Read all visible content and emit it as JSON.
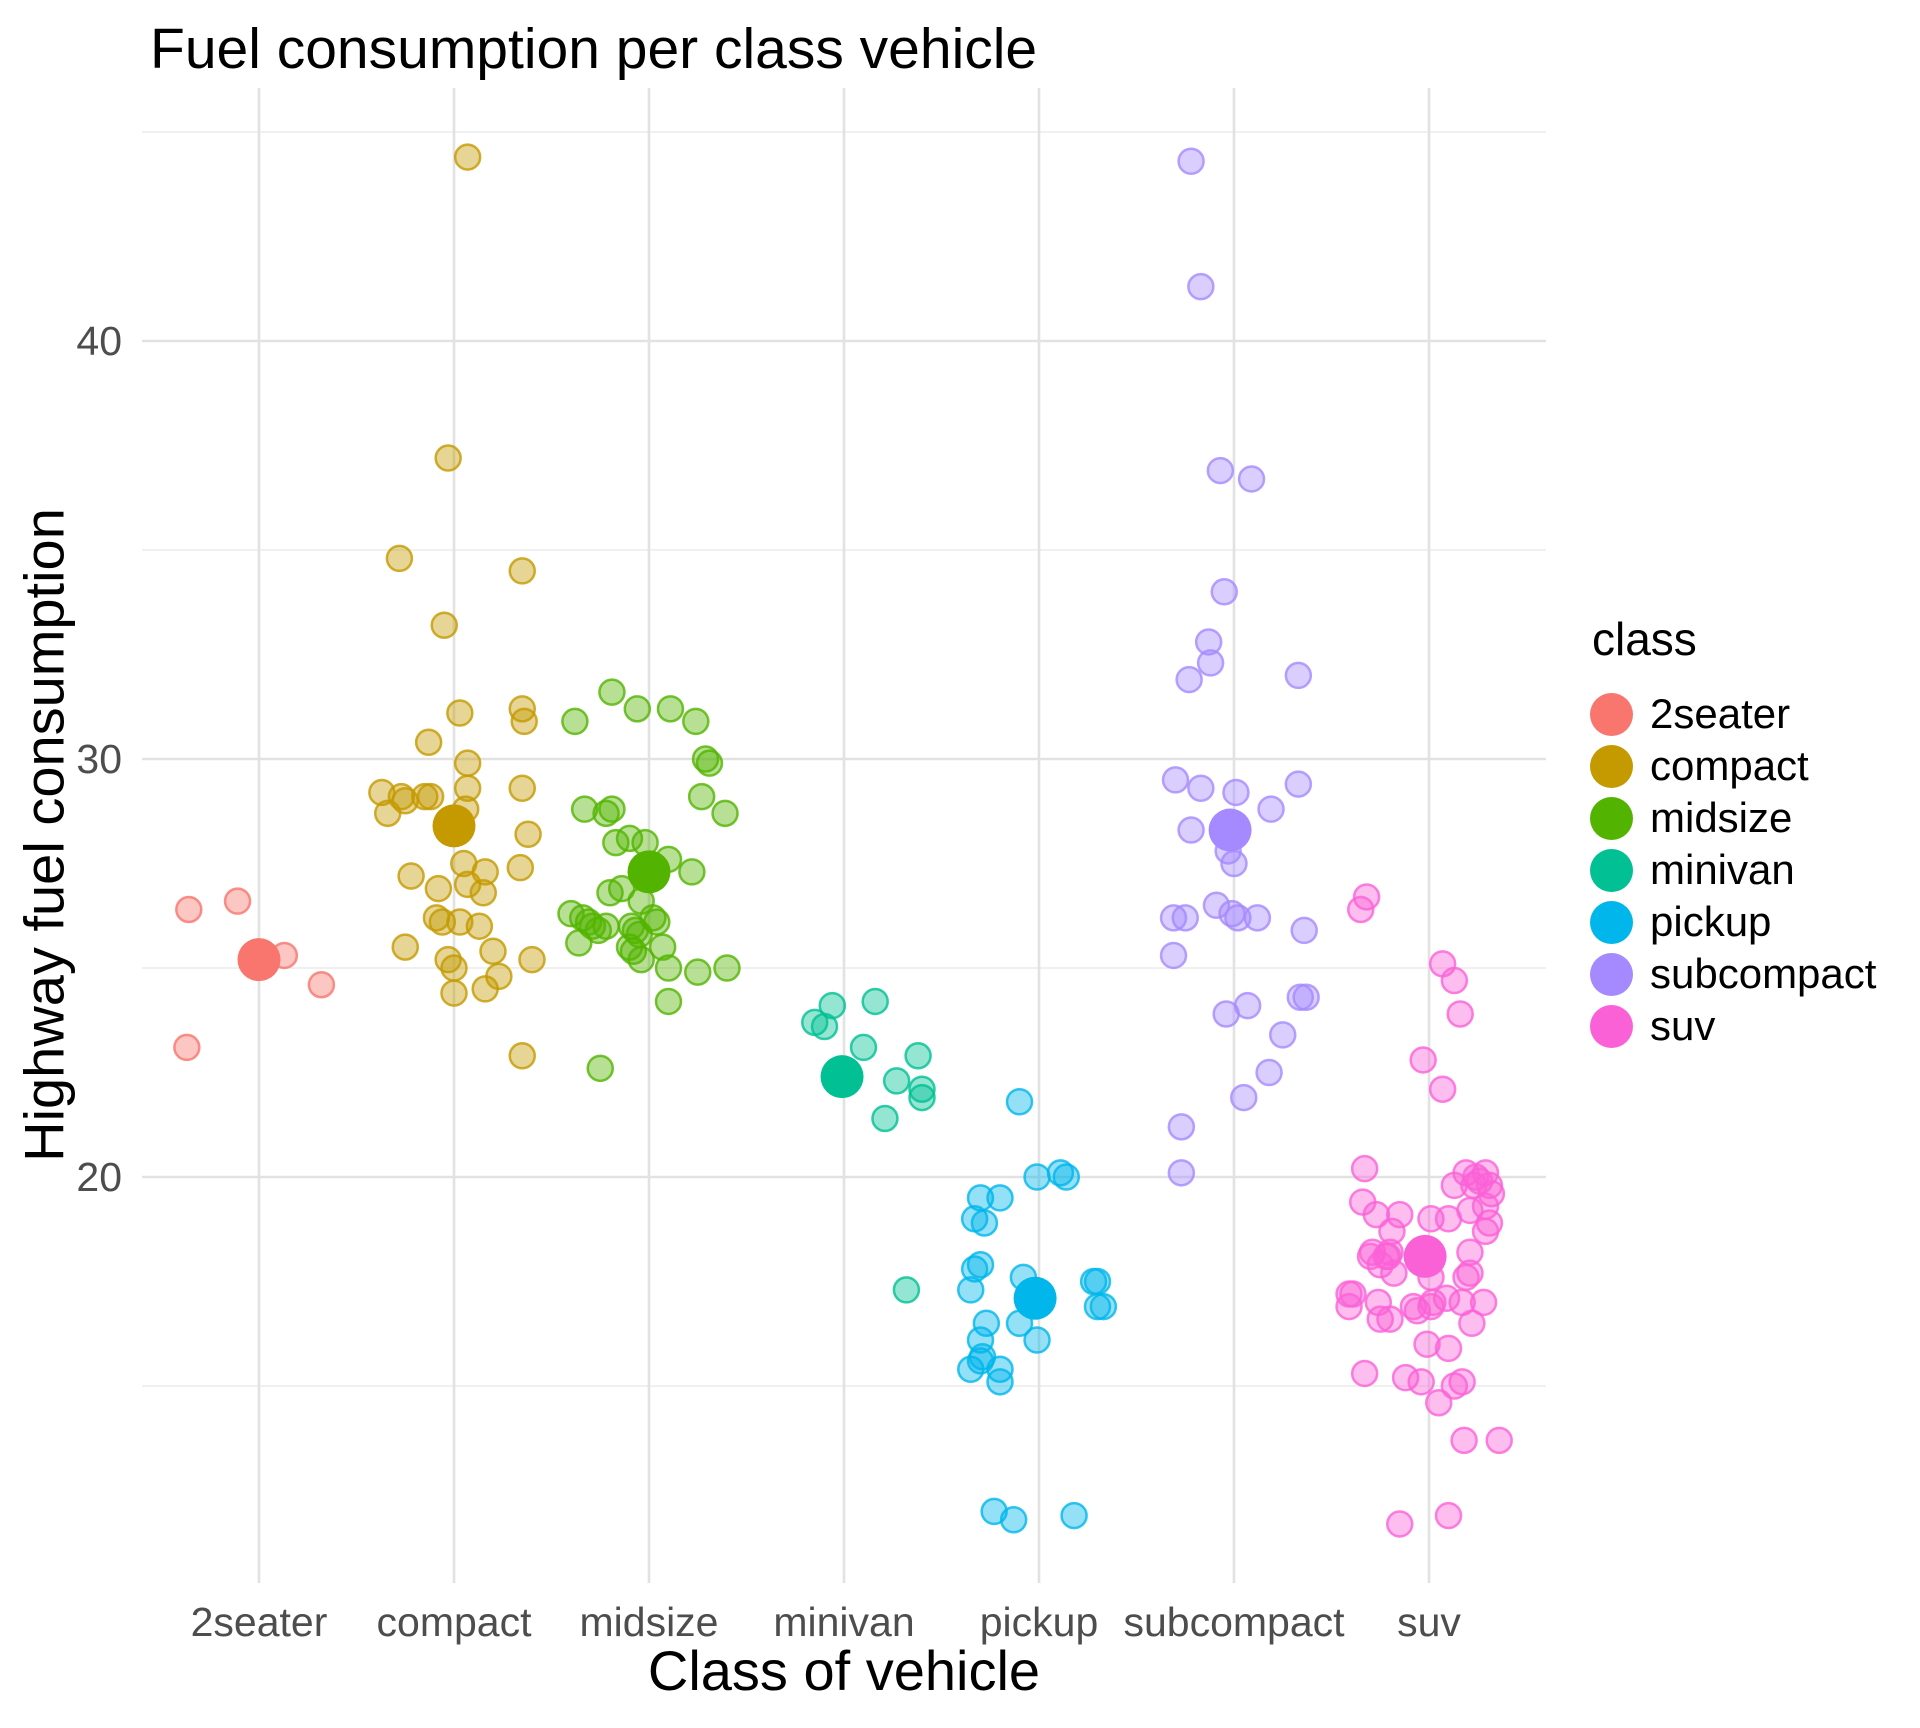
{
  "chart_data": {
    "type": "scatter",
    "title": "Fuel consumption per class vehicle",
    "xlabel": "Class of vehicle",
    "ylabel": "Highway fuel consumption",
    "categories": [
      "2seater",
      "compact",
      "midsize",
      "minivan",
      "pickup",
      "subcompact",
      "suv"
    ],
    "y_axis": {
      "major_ticks": [
        20,
        30,
        40
      ],
      "minor_ticks": [
        15,
        25,
        35,
        45
      ],
      "range": [
        10.3,
        46.1
      ]
    },
    "grid": true,
    "legend_position": "right",
    "point_alpha": 0.45,
    "colors": {
      "axis_text": "#4D4D4D",
      "text": "#000000",
      "grid_major": "#E2E2E2",
      "grid_minor": "#F0F0F0",
      "background": "#FFFFFF"
    },
    "series": [
      {
        "name": "2seater",
        "color": "#F8766D",
        "mean": 25.2,
        "mean_dx": 0.0,
        "points": [
          [
            -0.36,
            26.4
          ],
          [
            -0.11,
            26.6
          ],
          [
            0.13,
            25.3
          ],
          [
            0.32,
            24.6
          ],
          [
            -0.37,
            23.1
          ]
        ]
      },
      {
        "name": "compact",
        "color": "#C49A00",
        "mean": 28.4,
        "mean_dx": 0.0,
        "points": [
          [
            0.07,
            44.4
          ],
          [
            -0.03,
            37.2
          ],
          [
            -0.28,
            34.8
          ],
          [
            0.35,
            34.5
          ],
          [
            -0.05,
            33.2
          ],
          [
            0.03,
            31.1
          ],
          [
            0.35,
            31.2
          ],
          [
            0.36,
            30.9
          ],
          [
            -0.13,
            30.4
          ],
          [
            0.07,
            29.9
          ],
          [
            0.07,
            29.3
          ],
          [
            0.35,
            29.3
          ],
          [
            -0.37,
            29.2
          ],
          [
            -0.34,
            28.7
          ],
          [
            -0.27,
            29.1
          ],
          [
            -0.25,
            29.0
          ],
          [
            -0.15,
            29.1
          ],
          [
            -0.12,
            29.1
          ],
          [
            0.06,
            28.8
          ],
          [
            0.38,
            28.2
          ],
          [
            0.05,
            27.5
          ],
          [
            0.16,
            27.3
          ],
          [
            0.34,
            27.4
          ],
          [
            -0.22,
            27.2
          ],
          [
            -0.08,
            26.9
          ],
          [
            0.07,
            27.0
          ],
          [
            0.15,
            26.8
          ],
          [
            -0.09,
            26.2
          ],
          [
            -0.06,
            26.1
          ],
          [
            0.03,
            26.1
          ],
          [
            0.13,
            26.0
          ],
          [
            -0.25,
            25.5
          ],
          [
            -0.03,
            25.2
          ],
          [
            0.0,
            25.0
          ],
          [
            0.2,
            25.4
          ],
          [
            0.23,
            24.8
          ],
          [
            0.16,
            24.5
          ],
          [
            0.4,
            25.2
          ],
          [
            0.0,
            24.4
          ],
          [
            0.35,
            22.9
          ]
        ]
      },
      {
        "name": "midsize",
        "color": "#53B400",
        "mean": 27.3,
        "mean_dx": 0.0,
        "points": [
          [
            -0.19,
            31.6
          ],
          [
            -0.06,
            31.2
          ],
          [
            0.11,
            31.2
          ],
          [
            0.24,
            30.9
          ],
          [
            -0.38,
            30.9
          ],
          [
            0.29,
            30.0
          ],
          [
            0.31,
            29.9
          ],
          [
            0.27,
            29.1
          ],
          [
            0.39,
            28.7
          ],
          [
            -0.33,
            28.8
          ],
          [
            -0.22,
            28.7
          ],
          [
            -0.19,
            28.8
          ],
          [
            -0.17,
            28.0
          ],
          [
            -0.1,
            28.1
          ],
          [
            -0.02,
            28.0
          ],
          [
            0.1,
            27.6
          ],
          [
            0.22,
            27.3
          ],
          [
            -0.2,
            26.8
          ],
          [
            -0.14,
            26.9
          ],
          [
            -0.04,
            26.6
          ],
          [
            -0.4,
            26.3
          ],
          [
            -0.34,
            26.2
          ],
          [
            -0.31,
            26.1
          ],
          [
            -0.29,
            26.0
          ],
          [
            -0.22,
            26.0
          ],
          [
            -0.36,
            25.6
          ],
          [
            -0.26,
            25.9
          ],
          [
            -0.09,
            26.0
          ],
          [
            -0.07,
            25.9
          ],
          [
            -0.05,
            25.8
          ],
          [
            0.02,
            26.2
          ],
          [
            0.04,
            26.1
          ],
          [
            -0.1,
            25.5
          ],
          [
            -0.08,
            25.4
          ],
          [
            -0.04,
            25.2
          ],
          [
            0.07,
            25.5
          ],
          [
            0.1,
            25.0
          ],
          [
            0.25,
            24.9
          ],
          [
            0.4,
            25.0
          ],
          [
            0.1,
            24.2
          ],
          [
            -0.25,
            22.6
          ]
        ]
      },
      {
        "name": "minivan",
        "color": "#00C094",
        "mean": 22.4,
        "mean_dx": -0.01,
        "points": [
          [
            0.16,
            24.2
          ],
          [
            -0.06,
            24.1
          ],
          [
            -0.15,
            23.7
          ],
          [
            -0.1,
            23.6
          ],
          [
            0.1,
            23.1
          ],
          [
            0.38,
            22.9
          ],
          [
            0.27,
            22.3
          ],
          [
            0.4,
            22.1
          ],
          [
            0.4,
            21.9
          ],
          [
            0.21,
            21.4
          ],
          [
            0.32,
            17.3
          ]
        ]
      },
      {
        "name": "pickup",
        "color": "#00B6EB",
        "mean": 17.1,
        "mean_dx": -0.02,
        "points": [
          [
            -0.1,
            21.8
          ],
          [
            -0.01,
            20.0
          ],
          [
            0.11,
            20.1
          ],
          [
            0.14,
            20.0
          ],
          [
            -0.3,
            19.5
          ],
          [
            -0.2,
            19.5
          ],
          [
            -0.33,
            19.0
          ],
          [
            -0.28,
            18.9
          ],
          [
            -0.33,
            17.8
          ],
          [
            -0.3,
            17.9
          ],
          [
            -0.35,
            17.3
          ],
          [
            -0.08,
            17.6
          ],
          [
            0.28,
            17.5
          ],
          [
            0.3,
            17.5
          ],
          [
            0.3,
            16.9
          ],
          [
            0.33,
            16.9
          ],
          [
            -0.27,
            16.5
          ],
          [
            -0.1,
            16.5
          ],
          [
            -0.01,
            16.1
          ],
          [
            -0.3,
            16.1
          ],
          [
            -0.29,
            15.7
          ],
          [
            -0.35,
            15.4
          ],
          [
            -0.3,
            15.6
          ],
          [
            -0.2,
            15.4
          ],
          [
            -0.2,
            15.1
          ],
          [
            -0.23,
            12.0
          ],
          [
            -0.13,
            11.8
          ],
          [
            0.18,
            11.9
          ]
        ]
      },
      {
        "name": "subcompact",
        "color": "#A58AFF",
        "mean": 28.3,
        "mean_dx": -0.02,
        "points": [
          [
            -0.22,
            44.3
          ],
          [
            -0.17,
            41.3
          ],
          [
            -0.07,
            36.9
          ],
          [
            0.09,
            36.7
          ],
          [
            -0.05,
            34.0
          ],
          [
            -0.13,
            32.8
          ],
          [
            -0.12,
            32.3
          ],
          [
            -0.23,
            31.9
          ],
          [
            0.33,
            32.0
          ],
          [
            -0.3,
            29.5
          ],
          [
            -0.17,
            29.3
          ],
          [
            0.01,
            29.2
          ],
          [
            0.33,
            29.4
          ],
          [
            0.19,
            28.8
          ],
          [
            -0.22,
            28.3
          ],
          [
            -0.03,
            27.8
          ],
          [
            0.0,
            27.5
          ],
          [
            -0.09,
            26.5
          ],
          [
            -0.01,
            26.3
          ],
          [
            0.02,
            26.2
          ],
          [
            0.12,
            26.2
          ],
          [
            -0.31,
            26.2
          ],
          [
            -0.25,
            26.2
          ],
          [
            0.36,
            25.9
          ],
          [
            -0.31,
            25.3
          ],
          [
            -0.04,
            23.9
          ],
          [
            0.07,
            24.1
          ],
          [
            0.34,
            24.3
          ],
          [
            0.37,
            24.3
          ],
          [
            0.25,
            23.4
          ],
          [
            0.18,
            22.5
          ],
          [
            0.05,
            21.9
          ],
          [
            -0.27,
            21.2
          ],
          [
            -0.27,
            20.1
          ]
        ]
      },
      {
        "name": "suv",
        "color": "#FB61D7",
        "mean": 18.1,
        "mean_dx": -0.02,
        "points": [
          [
            -0.32,
            26.7
          ],
          [
            -0.35,
            26.4
          ],
          [
            0.07,
            25.1
          ],
          [
            0.13,
            24.7
          ],
          [
            0.16,
            23.9
          ],
          [
            -0.03,
            22.8
          ],
          [
            0.07,
            22.1
          ],
          [
            -0.33,
            20.2
          ],
          [
            0.19,
            20.1
          ],
          [
            0.24,
            20.0
          ],
          [
            0.29,
            20.1
          ],
          [
            0.26,
            19.9
          ],
          [
            0.13,
            19.8
          ],
          [
            0.23,
            19.8
          ],
          [
            0.31,
            19.8
          ],
          [
            0.32,
            19.6
          ],
          [
            -0.34,
            19.4
          ],
          [
            -0.27,
            19.1
          ],
          [
            -0.15,
            19.1
          ],
          [
            0.01,
            19.0
          ],
          [
            0.1,
            19.0
          ],
          [
            0.21,
            19.2
          ],
          [
            0.29,
            19.3
          ],
          [
            0.31,
            18.9
          ],
          [
            0.29,
            18.7
          ],
          [
            -0.19,
            18.7
          ],
          [
            -0.29,
            18.2
          ],
          [
            -0.21,
            18.1
          ],
          [
            0.21,
            18.2
          ],
          [
            -0.3,
            18.1
          ],
          [
            -0.22,
            18.1
          ],
          [
            -0.2,
            18.2
          ],
          [
            -0.25,
            17.9
          ],
          [
            -0.18,
            17.7
          ],
          [
            0.01,
            17.6
          ],
          [
            0.21,
            17.7
          ],
          [
            0.19,
            17.6
          ],
          [
            -0.41,
            17.2
          ],
          [
            -0.39,
            17.2
          ],
          [
            -0.41,
            16.9
          ],
          [
            -0.26,
            17.0
          ],
          [
            -0.08,
            16.9
          ],
          [
            -0.06,
            16.8
          ],
          [
            0.02,
            17.0
          ],
          [
            0.09,
            17.1
          ],
          [
            0.17,
            17.0
          ],
          [
            0.28,
            17.0
          ],
          [
            0.01,
            16.9
          ],
          [
            -0.25,
            16.6
          ],
          [
            -0.2,
            16.6
          ],
          [
            0.22,
            16.5
          ],
          [
            -0.01,
            16.0
          ],
          [
            0.1,
            15.9
          ],
          [
            -0.33,
            15.3
          ],
          [
            -0.12,
            15.2
          ],
          [
            -0.04,
            15.1
          ],
          [
            0.17,
            15.1
          ],
          [
            0.13,
            15.0
          ],
          [
            0.05,
            14.6
          ],
          [
            0.18,
            13.7
          ],
          [
            0.36,
            13.7
          ],
          [
            0.1,
            11.9
          ],
          [
            -0.15,
            11.7
          ]
        ]
      }
    ]
  },
  "legend": {
    "title": "class",
    "items": [
      {
        "label": "2seater",
        "color": "#F8766D"
      },
      {
        "label": "compact",
        "color": "#C49A00"
      },
      {
        "label": "midsize",
        "color": "#53B400"
      },
      {
        "label": "minivan",
        "color": "#00C094"
      },
      {
        "label": "pickup",
        "color": "#00B6EB"
      },
      {
        "label": "subcompact",
        "color": "#A58AFF"
      },
      {
        "label": "suv",
        "color": "#FB61D7"
      }
    ]
  }
}
